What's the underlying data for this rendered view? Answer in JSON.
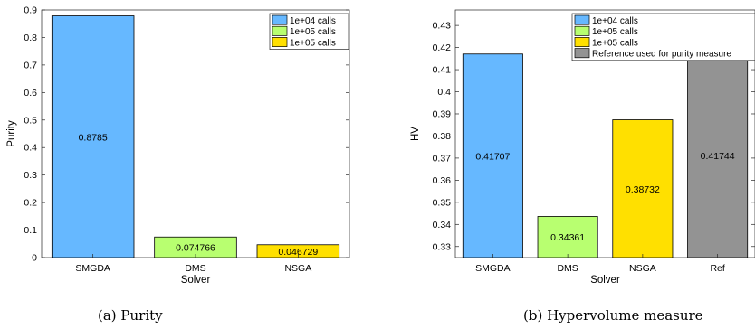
{
  "charts": [
    {
      "type": "bar",
      "caption": "(a) Purity",
      "xlabel": "Solver",
      "ylabel": "Purity",
      "ylim": [
        0,
        0.9
      ],
      "yticks": [
        "0",
        "0.1",
        "0.2",
        "0.3",
        "0.4",
        "0.5",
        "0.6",
        "0.7",
        "0.8",
        "0.9"
      ],
      "categories": [
        "SMGDA",
        "DMS",
        "NSGA"
      ],
      "values": [
        0.8785,
        0.074766,
        0.046729
      ],
      "value_labels": [
        "0.8785",
        "0.074766",
        "0.046729"
      ],
      "bar_colors": [
        "#66b8ff",
        "#b8ff70",
        "#ffe000"
      ],
      "legend": [
        {
          "label": "1e+04 calls",
          "color": "#66b8ff"
        },
        {
          "label": "1e+05 calls",
          "color": "#b8ff70"
        },
        {
          "label": "1e+05 calls",
          "color": "#ffe000"
        }
      ],
      "legend_position": "top-right"
    },
    {
      "type": "bar",
      "caption": "(b) Hypervolume measure",
      "xlabel": "Solver",
      "ylabel": "HV",
      "ylim": [
        0.325,
        0.437
      ],
      "yticks": [
        "0.33",
        "0.34",
        "0.35",
        "0.36",
        "0.37",
        "0.38",
        "0.39",
        "0.4",
        "0.41",
        "0.42",
        "0.43"
      ],
      "categories": [
        "SMGDA",
        "DMS",
        "NSGA",
        "Ref"
      ],
      "values": [
        0.41707,
        0.34361,
        0.38732,
        0.41744
      ],
      "value_labels": [
        "0.41707",
        "0.34361",
        "0.38732",
        "0.41744"
      ],
      "bar_colors": [
        "#66b8ff",
        "#b8ff70",
        "#ffe000",
        "#939393"
      ],
      "legend": [
        {
          "label": "1e+04 calls",
          "color": "#66b8ff"
        },
        {
          "label": "1e+05 calls",
          "color": "#b8ff70"
        },
        {
          "label": "1e+05 calls",
          "color": "#ffe000"
        },
        {
          "label": "Reference used for purity measure",
          "color": "#939393"
        }
      ],
      "legend_position": "top-right"
    }
  ]
}
